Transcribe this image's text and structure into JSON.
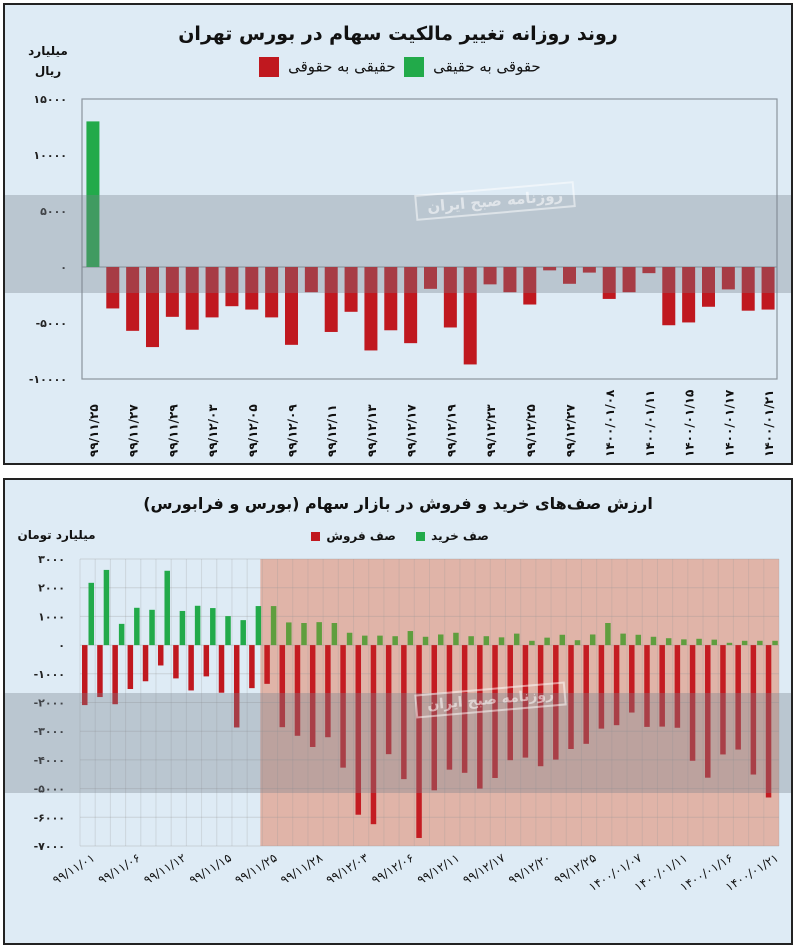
{
  "chart_data": [
    {
      "type": "bar",
      "title": "روند روزانه تغییر مالکیت سهام در بورس تهران",
      "ylabel": "میلیارد ریال",
      "ylim": [
        -10000,
        15000
      ],
      "yticks": [
        15000,
        10000,
        5000,
        0,
        -5000,
        -10000
      ],
      "ytick_labels": [
        "۱۵۰۰۰",
        "۱۰۰۰۰",
        "۵۰۰۰",
        "۰",
        "-۵۰۰۰",
        "-۱۰۰۰۰"
      ],
      "legend_position": "top-center",
      "legend": [
        {
          "name": "حقوقی به حقیقی",
          "color": "#22aa4a"
        },
        {
          "name": "حقیقی به حقوقی",
          "color": "#c0181f"
        }
      ],
      "xtick_labels": [
        "۹۹/۱۱/۲۵",
        "۹۹/۱۱/۲۷",
        "۹۹/۱۱/۲۹",
        "۹۹/۱۲/۰۳",
        "۹۹/۱۲/۰۵",
        "۹۹/۱۲/۰۹",
        "۹۹/۱۲/۱۱",
        "۹۹/۱۲/۱۳",
        "۹۹/۱۲/۱۷",
        "۹۹/۱۲/۱۹",
        "۹۹/۱۲/۲۳",
        "۹۹/۱۲/۲۵",
        "۹۹/۱۲/۲۷",
        "۱۴۰۰/۰۱/۰۸",
        "۱۴۰۰/۰۱/۱۱",
        "۱۴۰۰/۰۱/۱۵",
        "۱۴۰۰/۰۱/۱۷",
        "۱۴۰۰/۰۱/۲۱"
      ],
      "xtick_every": 2,
      "values": [
        13000,
        -3700,
        -5700,
        -7150,
        -4450,
        -5600,
        -4500,
        -3500,
        -3800,
        -4500,
        -6950,
        -2250,
        -5800,
        -4000,
        -7450,
        -5650,
        -6800,
        -1950,
        -5400,
        -8700,
        -1550,
        -2250,
        -3350,
        -300,
        -1500,
        -500,
        -2850,
        -2250,
        -550,
        -5200,
        -4950,
        -3550,
        -2000,
        -3900,
        -3800
      ],
      "grid": false,
      "watermark": "روزنامه صبح ایران"
    },
    {
      "type": "bar",
      "title": "ارزش صف‌های خرید و فروش در بازار سهام (بورس و فرابورس)",
      "ylabel": "میلیارد تومان",
      "ylim": [
        -7000,
        3000
      ],
      "yticks": [
        3000,
        2000,
        1000,
        0,
        -1000,
        -2000,
        -3000,
        -4000,
        -5000,
        -6000,
        -7000
      ],
      "ytick_labels": [
        "۳۰۰۰",
        "۲۰۰۰",
        "۱۰۰۰",
        "۰",
        "-۱۰۰۰",
        "-۲۰۰۰",
        "-۳۰۰۰",
        "-۴۰۰۰",
        "-۵۰۰۰",
        "-۶۰۰۰",
        "-۷۰۰۰"
      ],
      "legend_position": "top-center",
      "grid": true,
      "xtick_labels": [
        "۹۹/۱۱/۰۱",
        "۹۹/۱۱/۰۶",
        "۹۹/۱۱/۱۲",
        "۹۹/۱۱/۱۵",
        "۹۹/۱۱/۲۵",
        "۹۹/۱۱/۲۸",
        "۹۹/۱۲/۰۳",
        "۹۹/۱۲/۰۶",
        "۹۹/۱۲/۱۱",
        "۹۹/۱۲/۱۷",
        "۹۹/۱۲/۲۰",
        "۹۹/۱۲/۲۵",
        "۱۴۰۰/۰۱/۰۷",
        "۱۴۰۰/۰۱/۱۱",
        "۱۴۰۰/۰۱/۱۶",
        "۱۴۰۰/۰۱/۲۱"
      ],
      "xtick_every": 3,
      "highlight_from_index": 12,
      "highlight_color": "#e0b4a8",
      "series": [
        {
          "name": "صف خرید",
          "color": "#22aa4a",
          "values": [
            2170,
            2620,
            740,
            1300,
            1230,
            2590,
            1190,
            1370,
            1290,
            1010,
            870,
            1360,
            1360,
            790,
            770,
            800,
            770,
            430,
            330,
            330,
            310,
            490,
            290,
            370,
            430,
            310,
            310,
            270,
            400,
            150,
            260,
            360,
            170,
            370,
            770,
            400,
            360,
            290,
            240,
            200,
            220,
            190,
            80,
            150,
            150,
            150
          ]
        },
        {
          "name": "صف فروش",
          "color": "#c0181f",
          "values": [
            -2090,
            -1810,
            -2060,
            -1530,
            -1260,
            -710,
            -1160,
            -1580,
            -1090,
            -1660,
            -2870,
            -1500,
            -1350,
            -2860,
            -3160,
            -3550,
            -3210,
            -4270,
            -5910,
            -6240,
            -3800,
            -4670,
            -6720,
            -5060,
            -4340,
            -4450,
            -5000,
            -4630,
            -4010,
            -3920,
            -4220,
            -3990,
            -3620,
            -3440,
            -2910,
            -2790,
            -2350,
            -2850,
            -2840,
            -2880,
            -4030,
            -4620,
            -3810,
            -3640,
            -4510,
            -5310
          ]
        }
      ],
      "watermark": "روزنامه صبح ایران"
    }
  ]
}
